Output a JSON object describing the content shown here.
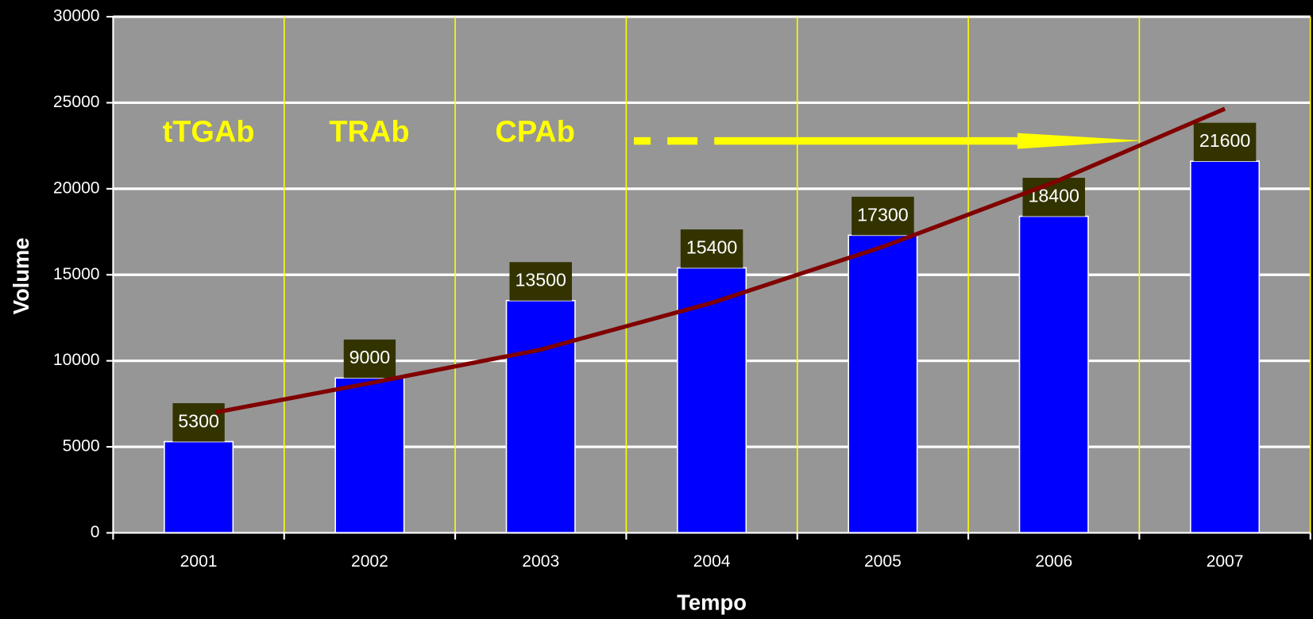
{
  "chart_data": {
    "type": "bar",
    "categories": [
      "2001",
      "2002",
      "2003",
      "2004",
      "2005",
      "2006",
      "2007"
    ],
    "values": [
      5300,
      9000,
      13500,
      15400,
      17300,
      18400,
      21600
    ],
    "color": "#0000ff",
    "trend": {
      "color": "#800000",
      "values": [
        7000,
        8700,
        10650,
        13370,
        16630,
        20370,
        24650
      ]
    },
    "xlabel": "Tempo",
    "ylabel": "Volume",
    "annotations": [
      "tTGAb",
      "TRAb",
      "CPAb"
    ],
    "ylim": [
      0,
      30000
    ],
    "yticks": [
      0,
      5000,
      10000,
      15000,
      20000,
      25000,
      30000
    ],
    "grid": true
  }
}
